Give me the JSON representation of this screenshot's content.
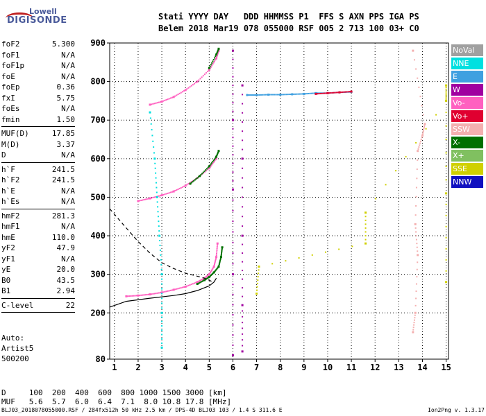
{
  "logo": {
    "line1": "Lowell",
    "line2": "DIGISONDE"
  },
  "header": {
    "line1": "Stati YYYY DAY   DDD HHMMSS P1  FFS S AXN PPS IGA PS",
    "line2": "Belem 2018 Mar19 078 055000 RSF 005 2 713 100 03+ C0"
  },
  "params": {
    "group1": [
      {
        "name": "foF2",
        "value": "5.300"
      },
      {
        "name": "foF1",
        "value": "N/A"
      },
      {
        "name": "foF1p",
        "value": "N/A"
      },
      {
        "name": "foE",
        "value": "N/A"
      },
      {
        "name": "foEp",
        "value": "0.36"
      },
      {
        "name": "fxI",
        "value": "5.75"
      },
      {
        "name": "foEs",
        "value": "N/A"
      },
      {
        "name": "fmin",
        "value": "1.50"
      }
    ],
    "group2": [
      {
        "name": "MUF(D)",
        "value": "17.85"
      },
      {
        "name": "M(D)",
        "value": "3.37"
      },
      {
        "name": "D",
        "value": "N/A"
      }
    ],
    "group3": [
      {
        "name": "h`F",
        "value": "241.5"
      },
      {
        "name": "h`F2",
        "value": "241.5"
      },
      {
        "name": "h`E",
        "value": "N/A"
      },
      {
        "name": "h`Es",
        "value": "N/A"
      }
    ],
    "group4": [
      {
        "name": "hmF2",
        "value": "281.3"
      },
      {
        "name": "hmF1",
        "value": "N/A"
      },
      {
        "name": "hmE",
        "value": "110.0"
      },
      {
        "name": "yF2",
        "value": "47.9"
      },
      {
        "name": "yF1",
        "value": "N/A"
      },
      {
        "name": "yE",
        "value": "20.0"
      },
      {
        "name": "B0",
        "value": "43.5"
      },
      {
        "name": "B1",
        "value": "2.94"
      }
    ],
    "group5": [
      {
        "name": "C-level",
        "value": "22"
      }
    ]
  },
  "auto": {
    "line1": "Auto:",
    "line2": "Artist5",
    "line3": "500200"
  },
  "legend": [
    {
      "label": "NoVal",
      "color": "#a0a0a0"
    },
    {
      "label": "NNE",
      "color": "#00e0e0"
    },
    {
      "label": "E",
      "color": "#40a0e0"
    },
    {
      "label": "W",
      "color": "#a000a0"
    },
    {
      "label": "Vo-",
      "color": "#ff60c0"
    },
    {
      "label": "Vo+",
      "color": "#e00030"
    },
    {
      "label": "SSW",
      "color": "#f4b0b0"
    },
    {
      "label": "X-",
      "color": "#007000"
    },
    {
      "label": "X+",
      "color": "#80c060"
    },
    {
      "label": "SSE",
      "color": "#d0d000"
    },
    {
      "label": "NNW",
      "color": "#1010c0"
    }
  ],
  "dmuf": {
    "d_line": "D     100  200  400  600  800 1000 1500 3000 [km]",
    "muf_line": "MUF   5.6  5.7  6.0  6.4  7.1  8.0 10.8 17.8 [MHz]"
  },
  "footer": {
    "left": "BLJ03_2018078055000.RSF / 284fx512h 50 kHz 2.5 km / DPS-4D BLJ03 103 / 1.4 S 311.6 E",
    "right": "Ion2Png v. 1.3.17"
  },
  "chart_data": {
    "type": "scatter",
    "xlim": [
      0.8,
      15.1
    ],
    "ylim": [
      80,
      900
    ],
    "x_ticks": [
      1,
      2,
      3,
      4,
      5,
      6,
      7,
      8,
      9,
      10,
      11,
      12,
      13,
      14,
      15
    ],
    "y_ticks": [
      80,
      200,
      300,
      400,
      500,
      600,
      700,
      800,
      900
    ],
    "grid": true,
    "series": [
      {
        "color": "#ff60c0",
        "points": [
          [
            1.5,
            243
          ],
          [
            2.0,
            245
          ],
          [
            2.5,
            248
          ],
          [
            3.0,
            253
          ],
          [
            3.5,
            260
          ],
          [
            4.0,
            268
          ],
          [
            4.5,
            280
          ],
          [
            4.8,
            290
          ],
          [
            5.0,
            300
          ],
          [
            5.2,
            320
          ],
          [
            5.3,
            345
          ],
          [
            5.35,
            380
          ]
        ]
      },
      {
        "color": "#007000",
        "points": [
          [
            4.5,
            275
          ],
          [
            4.8,
            285
          ],
          [
            5.0,
            293
          ],
          [
            5.2,
            305
          ],
          [
            5.4,
            320
          ],
          [
            5.5,
            345
          ],
          [
            5.55,
            370
          ]
        ]
      },
      {
        "color": "#ff60c0",
        "points": [
          [
            2.0,
            490
          ],
          [
            2.5,
            497
          ],
          [
            3.0,
            505
          ],
          [
            3.5,
            515
          ],
          [
            4.0,
            530
          ],
          [
            4.5,
            550
          ],
          [
            5.0,
            575
          ],
          [
            5.3,
            600
          ]
        ]
      },
      {
        "color": "#007000",
        "points": [
          [
            4.2,
            535
          ],
          [
            4.6,
            555
          ],
          [
            5.0,
            580
          ],
          [
            5.3,
            605
          ],
          [
            5.4,
            620
          ]
        ]
      },
      {
        "color": "#ff60c0",
        "points": [
          [
            2.5,
            740
          ],
          [
            3.0,
            748
          ],
          [
            3.5,
            760
          ],
          [
            4.0,
            778
          ],
          [
            4.5,
            800
          ],
          [
            5.0,
            830
          ],
          [
            5.3,
            860
          ],
          [
            5.4,
            880
          ]
        ]
      },
      {
        "color": "#007000",
        "points": [
          [
            5.0,
            835
          ],
          [
            5.3,
            870
          ],
          [
            5.4,
            885
          ]
        ]
      },
      {
        "color": "#a000a0",
        "points": [
          [
            6.0,
            90
          ],
          [
            6.0,
            300
          ],
          [
            6.0,
            520
          ],
          [
            6.0,
            700
          ],
          [
            6.0,
            880
          ]
        ]
      },
      {
        "color": "#a000a0",
        "points": [
          [
            6.4,
            100
          ],
          [
            6.4,
            220
          ],
          [
            6.4,
            400
          ],
          [
            6.4,
            600
          ],
          [
            6.4,
            790
          ]
        ]
      },
      {
        "color": "#40a0e0",
        "points": [
          [
            6.6,
            765
          ],
          [
            7.0,
            765
          ],
          [
            7.5,
            766
          ],
          [
            8.0,
            766
          ],
          [
            8.5,
            767
          ],
          [
            9.0,
            768
          ],
          [
            9.5,
            770
          ],
          [
            10.0,
            770
          ],
          [
            10.5,
            772
          ],
          [
            11.0,
            773
          ]
        ]
      },
      {
        "color": "#e00030",
        "points": [
          [
            9.5,
            768
          ],
          [
            10.0,
            770
          ],
          [
            10.5,
            772
          ],
          [
            11.0,
            774
          ]
        ]
      },
      {
        "color": "#00e0e0",
        "points": [
          [
            2.5,
            720
          ],
          [
            2.7,
            600
          ],
          [
            2.8,
            500
          ],
          [
            2.9,
            400
          ],
          [
            3.0,
            300
          ],
          [
            3.0,
            200
          ],
          [
            3.0,
            110
          ]
        ]
      },
      {
        "color": "#f4b0b0",
        "points": [
          [
            13.6,
            150
          ],
          [
            13.7,
            200
          ],
          [
            13.8,
            350
          ],
          [
            13.7,
            430
          ],
          [
            13.8,
            620
          ],
          [
            14.0,
            660
          ],
          [
            14.1,
            690
          ],
          [
            13.6,
            880
          ]
        ]
      },
      {
        "color": "#d0d000",
        "points": [
          [
            7.0,
            250
          ],
          [
            7.1,
            320
          ],
          [
            11.6,
            380
          ],
          [
            11.6,
            460
          ],
          [
            15.0,
            750
          ],
          [
            15.0,
            790
          ],
          [
            15.0,
            510
          ],
          [
            15.0,
            280
          ]
        ]
      }
    ],
    "curves": [
      {
        "style": "solid",
        "points": [
          [
            0.8,
            215
          ],
          [
            1.5,
            230
          ],
          [
            2.5,
            238
          ],
          [
            3.5,
            245
          ],
          [
            4.0,
            250
          ],
          [
            4.5,
            258
          ],
          [
            5.0,
            270
          ],
          [
            5.2,
            280
          ],
          [
            5.3,
            290
          ]
        ]
      },
      {
        "style": "dashed",
        "points": [
          [
            0.8,
            470
          ],
          [
            1.5,
            420
          ],
          [
            2.0,
            385
          ],
          [
            2.5,
            355
          ],
          [
            3.0,
            330
          ],
          [
            3.5,
            315
          ],
          [
            4.0,
            303
          ],
          [
            4.5,
            295
          ],
          [
            4.8,
            290
          ],
          [
            5.1,
            282
          ]
        ]
      }
    ]
  }
}
